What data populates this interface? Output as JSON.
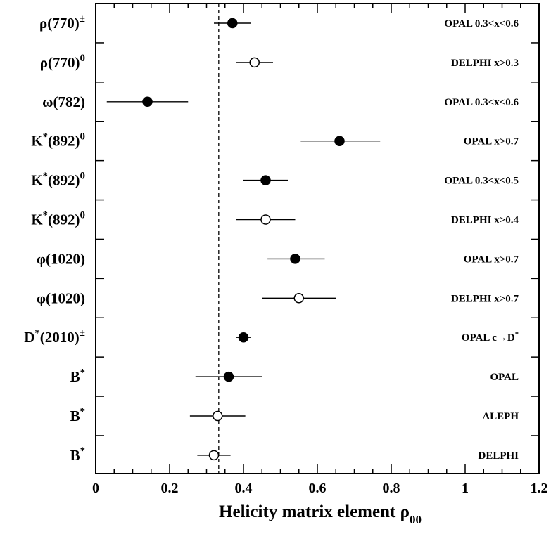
{
  "chart_data": {
    "type": "scatter",
    "title": "",
    "xlabel": "Helicity matrix element ρ",
    "xlabel_sub": "00",
    "xlim": [
      0,
      1.2
    ],
    "xticks": [
      "0",
      "0.2",
      "0.4",
      "0.6",
      "0.8",
      "1",
      "1.2"
    ],
    "reference_line": {
      "x": 0.333,
      "style": "dashed"
    },
    "grid": false,
    "points": [
      {
        "particle": "ρ(770)",
        "particle_sup": "±",
        "experiment": "OPAL 0.3<x<0.6",
        "value": 0.37,
        "err_low": 0.32,
        "err_high": 0.42,
        "filled": true
      },
      {
        "particle": "ρ(770)",
        "particle_sup": "0",
        "experiment": "DELPHI x>0.3",
        "value": 0.43,
        "err_low": 0.38,
        "err_high": 0.48,
        "filled": false
      },
      {
        "particle": "ω(782)",
        "particle_sup": "",
        "experiment": "OPAL 0.3<x<0.6",
        "value": 0.14,
        "err_low": 0.03,
        "err_high": 0.25,
        "filled": true
      },
      {
        "particle": "K*(892)",
        "particle_sup": "0",
        "experiment": "OPAL x>0.7",
        "value": 0.66,
        "err_low": 0.555,
        "err_high": 0.77,
        "filled": true
      },
      {
        "particle": "K*(892)",
        "particle_sup": "0",
        "experiment": "OPAL 0.3<x<0.5",
        "value": 0.46,
        "err_low": 0.4,
        "err_high": 0.52,
        "filled": true
      },
      {
        "particle": "K*(892)",
        "particle_sup": "0",
        "experiment": "DELPHI x>0.4",
        "value": 0.46,
        "err_low": 0.38,
        "err_high": 0.54,
        "filled": false
      },
      {
        "particle": "φ(1020)",
        "particle_sup": "",
        "experiment": "OPAL x>0.7",
        "value": 0.54,
        "err_low": 0.465,
        "err_high": 0.62,
        "filled": true
      },
      {
        "particle": "φ(1020)",
        "particle_sup": "",
        "experiment": "DELPHI x>0.7",
        "value": 0.55,
        "err_low": 0.45,
        "err_high": 0.65,
        "filled": false
      },
      {
        "particle": "D*(2010)",
        "particle_sup": "±",
        "experiment": "OPAL c→D*",
        "value": 0.4,
        "err_low": 0.38,
        "err_high": 0.42,
        "filled": true
      },
      {
        "particle": "B*",
        "particle_sup": "",
        "experiment": "OPAL",
        "value": 0.36,
        "err_low": 0.27,
        "err_high": 0.45,
        "filled": true
      },
      {
        "particle": "B*",
        "particle_sup": "",
        "experiment": "ALEPH",
        "value": 0.33,
        "err_low": 0.255,
        "err_high": 0.405,
        "filled": false
      },
      {
        "particle": "B*",
        "particle_sup": "",
        "experiment": "DELPHI",
        "value": 0.32,
        "err_low": 0.275,
        "err_high": 0.365,
        "filled": false
      }
    ]
  }
}
